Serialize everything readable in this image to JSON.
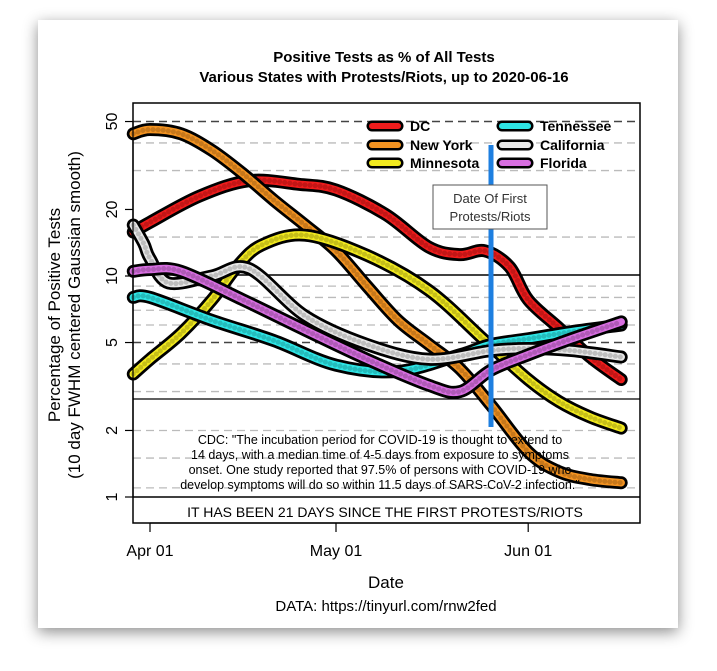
{
  "chart_data": {
    "type": "line",
    "title": "Positive Tests as % of All Tests",
    "subtitle": "Various States with Protests/Riots, up to 2020-06-16",
    "xlabel": "Date",
    "ylabel_line1": "Percentage of Positive Tests",
    "ylabel_line2": "(10 day FWHM centered Gaussian smooth)",
    "yscale": "log",
    "ylim": [
      0.85,
      60
    ],
    "x_unit": "days since 2020-04-01",
    "xlim": [
      -3,
      79
    ],
    "x_ticks": [
      {
        "day": 0,
        "label": "Apr 01"
      },
      {
        "day": 30,
        "label": "May 01"
      },
      {
        "day": 61,
        "label": "Jun 01"
      }
    ],
    "y_ticks": [
      1,
      2,
      5,
      10,
      20,
      50
    ],
    "y_tick_labels": [
      "1",
      "2",
      "5",
      "10",
      "20",
      "50"
    ],
    "legend_position": "top-right",
    "series": [
      {
        "name": "DC",
        "color": "#ee1c1c",
        "x": [
          -2.7,
          0,
          8,
          16,
          24,
          30,
          38,
          45,
          50,
          54,
          58,
          61,
          66,
          71,
          76
        ],
        "values": [
          15.8,
          17.5,
          23,
          27,
          26,
          24.5,
          19,
          13.5,
          12.5,
          13,
          11,
          7.8,
          5.8,
          4.3,
          3.4
        ]
      },
      {
        "name": "New York",
        "color": "#f39321",
        "x": [
          -2.7,
          0,
          5,
          10,
          15,
          20,
          25,
          30,
          35,
          40,
          45,
          50,
          55,
          61,
          66,
          71,
          76
        ],
        "values": [
          44,
          46,
          44,
          37,
          29,
          22,
          17,
          13,
          9,
          6.3,
          4.9,
          3.8,
          2.6,
          1.6,
          1.3,
          1.2,
          1.16
        ]
      },
      {
        "name": "Minnesota",
        "color": "#f2ea1f",
        "x": [
          -2.7,
          0,
          5,
          10,
          14,
          18,
          25,
          35,
          45,
          54,
          61,
          66,
          71,
          76
        ],
        "values": [
          3.6,
          4.2,
          5.5,
          7.8,
          11,
          13.8,
          15.3,
          12.4,
          8.6,
          5.1,
          3.4,
          2.7,
          2.3,
          2.05
        ]
      },
      {
        "name": "Tennessee",
        "color": "#2ee6e6",
        "x": [
          -2.7,
          0,
          10,
          20,
          30,
          40,
          50,
          55,
          61,
          68,
          76
        ],
        "values": [
          8,
          8,
          6.3,
          5.1,
          3.95,
          3.7,
          4.4,
          4.9,
          5.2,
          5.6,
          6.0
        ]
      },
      {
        "name": "California",
        "color": "#e8e8e8",
        "x": [
          -2.7,
          -1,
          0,
          3,
          10,
          16,
          25,
          35,
          45,
          55,
          61,
          68,
          76
        ],
        "values": [
          17,
          14,
          12,
          9.3,
          10,
          10.8,
          6.6,
          4.9,
          4.2,
          4.6,
          4.7,
          4.6,
          4.3
        ]
      },
      {
        "name": "Florida",
        "color": "#d76ee0",
        "x": [
          -2.7,
          0,
          5,
          15,
          25,
          35,
          45,
          50,
          55,
          61,
          68,
          76
        ],
        "values": [
          10.5,
          10.7,
          10.5,
          7.8,
          5.7,
          4.2,
          3.2,
          3.0,
          3.75,
          4.4,
          5.2,
          6.2
        ]
      }
    ],
    "annotations": {
      "protest_label_line1": "Date Of First",
      "protest_label_line2": "Protests/Riots",
      "protest_day": 55,
      "protest_color": "#1e7fe0",
      "cdc_lines": [
        "CDC: \"The incubation period for COVID-19 is thought to extend to",
        "14 days, with a median time of 4-5 days from exposure to symptoms",
        "onset. One study reported that 97.5% of persons with COVID-19 who",
        "develop symptoms will do so within 11.5 days of SARS-CoV-2 infection.\""
      ],
      "days_since": "IT HAS BEEN 21 DAYS SINCE THE FIRST PROTESTS/RIOTS",
      "source": "DATA: https://tinyurl.com/rnw2fed"
    }
  }
}
